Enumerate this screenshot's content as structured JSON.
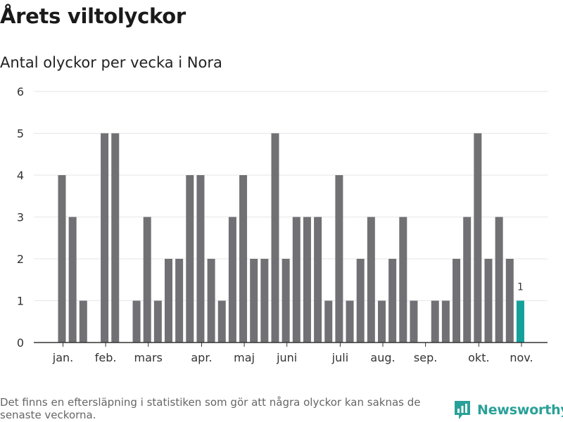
{
  "header": {
    "title": "Årets viltolyckor",
    "subtitle": "Antal olyckor per vecka i Nora"
  },
  "footer": {
    "note": "Det finns en eftersläpning i statistiken som gör att några olyckor kan saknas de senaste veckorna.",
    "brand": "Newsworthy",
    "brand_icon": "newsworthy-logo-icon"
  },
  "colors": {
    "bar": "#717074",
    "highlight": "#13a19a",
    "grid": "#e6e6e6",
    "axis": "#333333"
  },
  "chart_data": {
    "type": "bar",
    "title": "Antal olyckor per vecka i Nora",
    "xlabel": "",
    "ylabel": "",
    "ylim": [
      0,
      6
    ],
    "yticks": [
      "0",
      "1",
      "2",
      "3",
      "4",
      "5",
      "6"
    ],
    "x": [
      1,
      2,
      3,
      4,
      5,
      6,
      7,
      8,
      9,
      10,
      11,
      12,
      13,
      14,
      15,
      16,
      17,
      18,
      19,
      20,
      21,
      22,
      23,
      24,
      25,
      26,
      27,
      28,
      29,
      30,
      31,
      32,
      33,
      34,
      35,
      36,
      37,
      38,
      39,
      40,
      41,
      42,
      43,
      44
    ],
    "values": [
      4,
      3,
      1,
      0,
      5,
      5,
      0,
      1,
      3,
      1,
      2,
      2,
      4,
      4,
      2,
      1,
      3,
      4,
      2,
      2,
      5,
      2,
      3,
      3,
      3,
      1,
      4,
      1,
      2,
      3,
      1,
      2,
      3,
      1,
      0,
      1,
      1,
      2,
      3,
      5,
      2,
      3,
      2,
      1
    ],
    "highlight_index": 43,
    "highlight_label": "1",
    "month_ticks": [
      {
        "label": "jan.",
        "x": 1.1
      },
      {
        "label": "feb.",
        "x": 5.1
      },
      {
        "label": "mars",
        "x": 9.1
      },
      {
        "label": "apr.",
        "x": 14.1
      },
      {
        "label": "maj",
        "x": 18.1
      },
      {
        "label": "juni",
        "x": 22.1
      },
      {
        "label": "juli",
        "x": 27.1
      },
      {
        "label": "aug.",
        "x": 31.1
      },
      {
        "label": "sep.",
        "x": 35.1
      },
      {
        "label": "okt.",
        "x": 40.1
      },
      {
        "label": "nov.",
        "x": 44.1
      }
    ],
    "grid": true,
    "legend": "none"
  }
}
